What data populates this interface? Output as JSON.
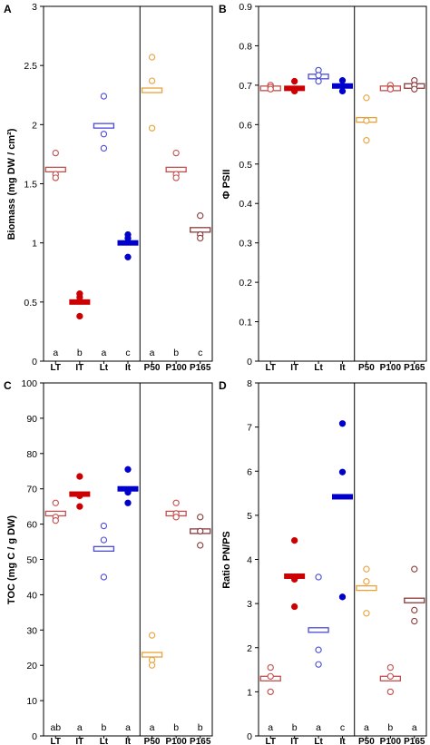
{
  "colors": {
    "LT": "#c0504d",
    "IT": "#cc0000",
    "Lt": "#4a4ad8",
    "It": "#0000cc",
    "P50": "#e8a23a",
    "P100": "#c0504d",
    "P165": "#8b3a3a"
  },
  "chart_data": [
    {
      "panel": "A",
      "type": "scatter",
      "ylabel": "Biomass (mg DW / cm²)",
      "ylim": [
        0,
        3
      ],
      "yticks": [
        "0",
        "0.5",
        "1",
        "1.5",
        "2",
        "2.5",
        "3"
      ],
      "categories": [
        "LT",
        "IT",
        "Lt",
        "It",
        "P50",
        "P100",
        "P165"
      ],
      "filled": [
        false,
        true,
        false,
        true,
        false,
        false,
        false
      ],
      "series": [
        {
          "category": "LT",
          "mean": 1.62,
          "points": [
            1.76,
            1.58,
            1.55
          ]
        },
        {
          "category": "IT",
          "mean": 0.5,
          "points": [
            0.57,
            0.54,
            0.38
          ]
        },
        {
          "category": "Lt",
          "mean": 1.99,
          "points": [
            2.24,
            1.92,
            1.8
          ]
        },
        {
          "category": "It",
          "mean": 1.0,
          "points": [
            1.07,
            1.04,
            0.88
          ]
        },
        {
          "category": "P50",
          "mean": 2.29,
          "points": [
            2.57,
            2.37,
            1.97
          ]
        },
        {
          "category": "P100",
          "mean": 1.62,
          "points": [
            1.76,
            1.58,
            1.55
          ]
        },
        {
          "category": "P165",
          "mean": 1.11,
          "points": [
            1.23,
            1.07,
            1.04
          ]
        }
      ],
      "letters": [
        "a",
        "b",
        "a",
        "c",
        "a",
        "b",
        "c"
      ],
      "show_xlabels": true
    },
    {
      "panel": "B",
      "type": "scatter",
      "ylabel": "Φ PSII",
      "ylim": [
        0,
        0.9
      ],
      "yticks": [
        "0",
        "0.1",
        "0.2",
        "0.3",
        "0.4",
        "0.5",
        "0.6",
        "0.7",
        "0.8",
        "0.9"
      ],
      "categories": [
        "LT",
        "IT",
        "Lt",
        "It",
        "P50",
        "P100",
        "P165"
      ],
      "filled": [
        false,
        true,
        false,
        true,
        false,
        false,
        false
      ],
      "series": [
        {
          "category": "LT",
          "mean": 0.692,
          "points": [
            0.7,
            0.695,
            0.69
          ]
        },
        {
          "category": "IT",
          "mean": 0.692,
          "points": [
            0.71,
            0.69,
            0.685
          ]
        },
        {
          "category": "Lt",
          "mean": 0.722,
          "points": [
            0.738,
            0.725,
            0.71
          ]
        },
        {
          "category": "It",
          "mean": 0.698,
          "points": [
            0.712,
            0.698,
            0.685
          ]
        },
        {
          "category": "P50",
          "mean": 0.612,
          "points": [
            0.668,
            0.61,
            0.56
          ]
        },
        {
          "category": "P100",
          "mean": 0.692,
          "points": [
            0.7,
            0.692,
            0.69
          ]
        },
        {
          "category": "P165",
          "mean": 0.698,
          "points": [
            0.712,
            0.7,
            0.69
          ]
        }
      ],
      "letters": [],
      "show_xlabels": true
    },
    {
      "panel": "C",
      "type": "scatter",
      "ylabel": "TOC (mg C / g DW)",
      "ylim": [
        0,
        100
      ],
      "yticks": [
        "0",
        "10",
        "20",
        "30",
        "40",
        "50",
        "60",
        "70",
        "80",
        "90",
        "100"
      ],
      "categories": [
        "LT",
        "IT",
        "Lt",
        "It",
        "P50",
        "P100",
        "P165"
      ],
      "filled": [
        false,
        true,
        false,
        true,
        false,
        false,
        false
      ],
      "series": [
        {
          "category": "LT",
          "mean": 63,
          "points": [
            66,
            62,
            61
          ]
        },
        {
          "category": "IT",
          "mean": 68.5,
          "points": [
            73.5,
            68,
            65
          ]
        },
        {
          "category": "Lt",
          "mean": 53,
          "points": [
            59.5,
            55.5,
            45
          ]
        },
        {
          "category": "It",
          "mean": 70,
          "points": [
            75.5,
            69,
            66
          ]
        },
        {
          "category": "P50",
          "mean": 23,
          "points": [
            28.5,
            21.5,
            20
          ]
        },
        {
          "category": "P100",
          "mean": 63,
          "points": [
            66,
            63,
            62
          ]
        },
        {
          "category": "P165",
          "mean": 58,
          "points": [
            62,
            58,
            54
          ]
        }
      ],
      "letters": [
        "ab",
        "a",
        "b",
        "a",
        "a",
        "b",
        "b"
      ],
      "show_xlabels": true
    },
    {
      "panel": "D",
      "type": "scatter",
      "ylabel": "Ratio PN/PS",
      "ylim": [
        0,
        8
      ],
      "yticks": [
        "0",
        "1",
        "2",
        "3",
        "4",
        "5",
        "6",
        "7",
        "8"
      ],
      "categories": [
        "LT",
        "IT",
        "Lt",
        "It",
        "P50",
        "P100",
        "P165"
      ],
      "filled": [
        false,
        true,
        false,
        true,
        false,
        false,
        false
      ],
      "series": [
        {
          "category": "LT",
          "mean": 1.3,
          "points": [
            1.55,
            1.35,
            1.0
          ]
        },
        {
          "category": "IT",
          "mean": 3.62,
          "points": [
            4.43,
            3.55,
            2.93
          ]
        },
        {
          "category": "Lt",
          "mean": 2.4,
          "points": [
            3.6,
            1.95,
            1.62
          ]
        },
        {
          "category": "It",
          "mean": 5.42,
          "points": [
            7.08,
            5.98,
            3.15
          ]
        },
        {
          "category": "P50",
          "mean": 3.35,
          "points": [
            3.78,
            3.5,
            2.78
          ]
        },
        {
          "category": "P100",
          "mean": 1.3,
          "points": [
            1.55,
            1.35,
            1.0
          ]
        },
        {
          "category": "P165",
          "mean": 3.07,
          "points": [
            3.78,
            2.85,
            2.6
          ]
        }
      ],
      "letters": [
        "a",
        "b",
        "a",
        "c",
        "a",
        "b",
        "a"
      ],
      "show_xlabels": true
    }
  ]
}
